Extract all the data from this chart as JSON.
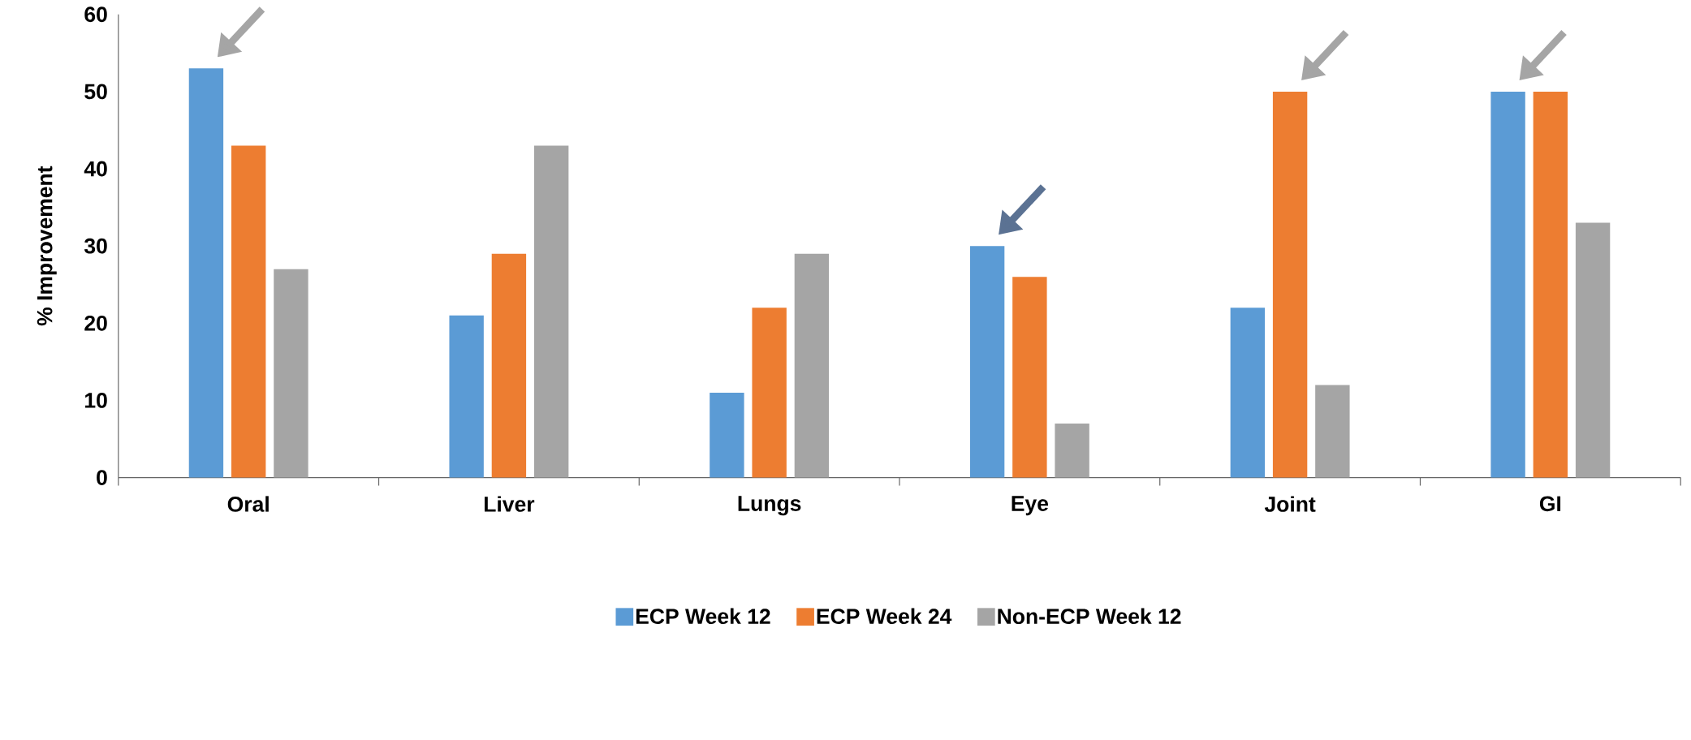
{
  "chart_data": {
    "type": "bar",
    "ylabel": "% Improvement",
    "categories": [
      "Oral",
      "Liver",
      "Lungs",
      "Eye",
      "Joint",
      "GI"
    ],
    "series": [
      {
        "name": "ECP Week 12",
        "color": "#5b9bd5",
        "values": [
          53,
          21,
          11,
          30,
          22,
          50
        ]
      },
      {
        "name": "ECP Week 24",
        "color": "#ed7d31",
        "values": [
          43,
          29,
          22,
          26,
          50,
          50
        ]
      },
      {
        "name": "Non-ECP Week 12",
        "color": "#a5a5a5",
        "values": [
          27,
          43,
          29,
          7,
          12,
          33
        ]
      }
    ],
    "ylim": [
      0,
      60
    ],
    "yticks": [
      0,
      10,
      20,
      30,
      40,
      50,
      60
    ],
    "grid": false,
    "legend": "bottom"
  }
}
